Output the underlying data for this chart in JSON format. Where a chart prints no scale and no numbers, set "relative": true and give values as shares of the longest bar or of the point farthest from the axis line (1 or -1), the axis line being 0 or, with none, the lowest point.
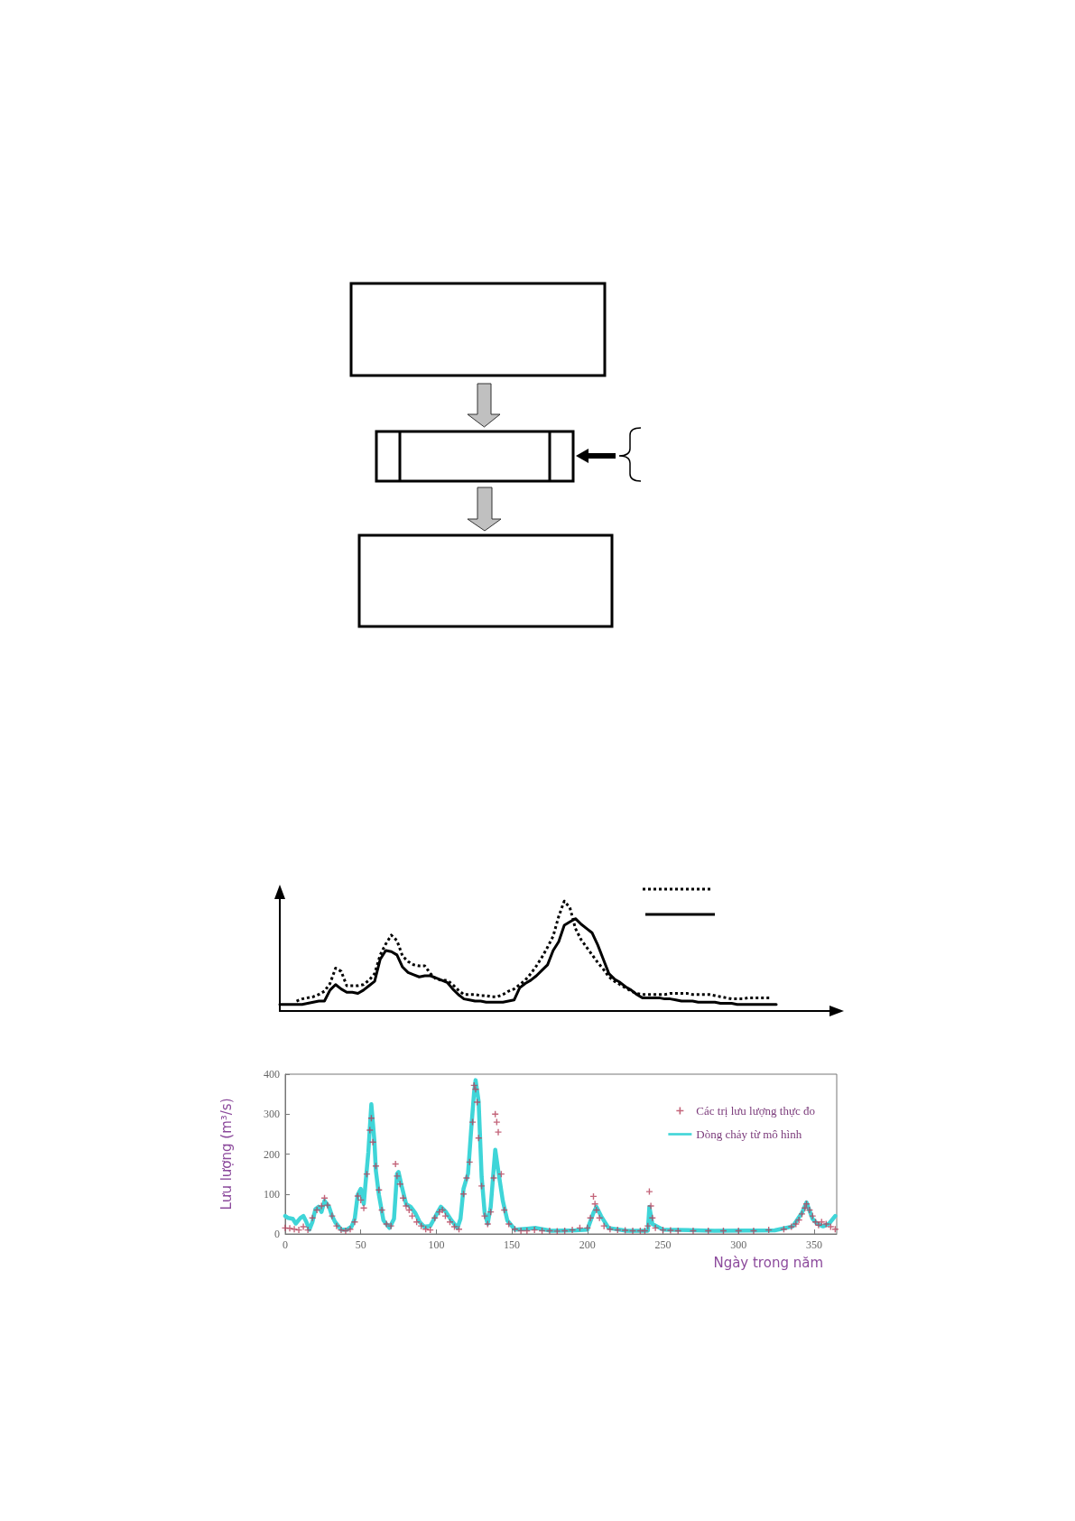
{
  "chart_data": [
    {
      "type": "line",
      "relative": true,
      "categories": [
        null,
        null,
        null,
        null,
        null,
        null,
        null,
        null,
        null,
        null,
        null,
        null,
        null,
        null,
        null,
        null,
        null,
        null,
        null,
        null,
        null,
        null,
        null,
        null,
        null,
        null,
        null,
        null,
        null,
        null,
        null,
        null,
        null,
        null,
        null,
        null,
        null,
        null,
        null,
        null,
        null,
        null,
        null,
        null,
        null,
        null,
        null,
        null,
        null,
        null,
        null,
        null,
        null,
        null,
        null,
        null,
        null,
        null,
        null,
        null,
        null,
        null,
        null,
        null,
        null,
        null,
        null,
        null,
        null,
        null,
        null,
        null,
        null,
        null,
        null,
        null,
        null,
        null,
        null,
        null,
        null,
        null,
        null,
        null,
        null,
        null,
        null,
        null,
        null,
        null,
        null,
        null,
        null,
        null,
        null,
        null,
        null,
        null,
        null,
        null,
        null
      ],
      "series": [
        {
          "color": "#000000",
          "line_style": "dotted",
          "values": [
            null,
            null,
            null,
            0.09,
            0.11,
            0.12,
            0.13,
            0.15,
            0.18,
            0.25,
            0.39,
            0.36,
            0.23,
            0.23,
            0.23,
            0.24,
            0.28,
            0.34,
            0.51,
            0.61,
            0.69,
            0.64,
            0.5,
            0.45,
            0.42,
            0.41,
            0.41,
            0.34,
            0.29,
            0.28,
            0.28,
            0.24,
            0.19,
            0.15,
            0.15,
            0.15,
            0.14,
            0.14,
            0.13,
            0.13,
            0.15,
            0.18,
            0.2,
            0.24,
            0.28,
            0.34,
            0.41,
            0.49,
            0.58,
            0.68,
            0.86,
            1,
            0.94,
            0.75,
            0.65,
            0.58,
            0.51,
            0.44,
            0.38,
            0.31,
            0.27,
            0.24,
            0.21,
            0.18,
            0.16,
            0.15,
            0.15,
            0.15,
            0.15,
            0.15,
            0.16,
            0.16,
            0.16,
            0.16,
            0.15,
            0.15,
            0.15,
            0.15,
            0.14,
            0.13,
            0.12,
            0.11,
            0.11,
            0.11,
            0.12,
            0.12,
            0.12,
            0.12,
            0.12,
            null,
            null,
            null,
            null,
            null,
            null,
            null,
            null,
            null,
            null,
            null,
            null
          ]
        },
        {
          "color": "#000000",
          "line_style": "solid",
          "values": [
            0.06,
            0.06,
            0.06,
            0.06,
            0.06,
            0.07,
            0.08,
            0.09,
            0.09,
            0.19,
            0.24,
            0.2,
            0.17,
            0.17,
            0.16,
            0.19,
            0.23,
            0.27,
            0.47,
            0.55,
            0.54,
            0.51,
            0.4,
            0.35,
            0.33,
            0.31,
            0.32,
            0.32,
            0.3,
            0.28,
            0.26,
            0.2,
            0.15,
            0.11,
            0.1,
            0.09,
            0.09,
            0.08,
            0.08,
            0.08,
            0.08,
            0.09,
            0.1,
            0.21,
            0.25,
            0.28,
            0.32,
            0.37,
            0.42,
            0.55,
            0.63,
            0.78,
            0.81,
            0.84,
            0.79,
            0.75,
            0.71,
            0.6,
            0.47,
            0.34,
            0.29,
            0.26,
            0.22,
            0.19,
            0.15,
            0.12,
            0.12,
            0.12,
            0.12,
            0.11,
            0.11,
            0.1,
            0.09,
            0.09,
            0.09,
            0.08,
            0.08,
            0.08,
            0.08,
            0.07,
            0.07,
            0.07,
            0.06,
            0.06,
            0.06,
            0.06,
            0.06,
            0.06,
            0.06,
            0.06,
            null,
            null,
            null,
            null,
            null,
            null,
            null,
            null,
            null,
            null,
            null
          ]
        }
      ]
    },
    {
      "type": "line",
      "xlabel": "Ngày trong năm",
      "ylabel": "Lưu lượng (m³/s)",
      "legend": "top right",
      "xlim": [
        0,
        365
      ],
      "xticks": [
        0,
        50,
        100,
        150,
        200,
        250,
        300,
        350
      ],
      "ylim": [
        0,
        400
      ],
      "yticks": [
        0,
        100,
        200,
        300,
        400
      ],
      "series": [
        {
          "name": "Các trị lưu lượng thực đo",
          "type": "scatter",
          "marker": "cross",
          "color": "#b5405a",
          "x": [
            0,
            3,
            6,
            9,
            12,
            15,
            18,
            21,
            24,
            26,
            28,
            31,
            34,
            37,
            40,
            43,
            46,
            48,
            50,
            52,
            54,
            56,
            57,
            58,
            60,
            62,
            64,
            67,
            70,
            73,
            74,
            76,
            78,
            80,
            82,
            84,
            87,
            90,
            93,
            96,
            99,
            102,
            104,
            106,
            109,
            112,
            115,
            118,
            120,
            122,
            124,
            125,
            126,
            127,
            128,
            130,
            132,
            134,
            136,
            138,
            139,
            140,
            141,
            143,
            145,
            148,
            152,
            156,
            160,
            165,
            170,
            175,
            180,
            185,
            190,
            195,
            200,
            202,
            204,
            205,
            206,
            208,
            211,
            215,
            220,
            225,
            230,
            235,
            238,
            240,
            241,
            242,
            243,
            245,
            250,
            255,
            260,
            270,
            280,
            290,
            300,
            310,
            320,
            330,
            335,
            338,
            340,
            342,
            344,
            345,
            347,
            349,
            351,
            353,
            355,
            358,
            361,
            364
          ],
          "values": [
            15,
            14,
            12,
            10,
            18,
            10,
            40,
            60,
            70,
            90,
            72,
            45,
            20,
            10,
            8,
            12,
            30,
            95,
            85,
            65,
            150,
            260,
            290,
            230,
            170,
            110,
            60,
            25,
            20,
            175,
            145,
            125,
            90,
            70,
            60,
            45,
            30,
            20,
            12,
            10,
            40,
            55,
            60,
            45,
            30,
            18,
            12,
            100,
            140,
            180,
            280,
            372,
            362,
            330,
            240,
            120,
            45,
            25,
            55,
            140,
            300,
            280,
            255,
            150,
            60,
            25,
            12,
            8,
            8,
            10,
            8,
            8,
            7,
            8,
            10,
            15,
            15,
            40,
            94,
            75,
            60,
            40,
            20,
            12,
            10,
            9,
            8,
            8,
            8,
            20,
            106,
            70,
            40,
            15,
            10,
            9,
            8,
            8,
            8,
            8,
            8,
            8,
            10,
            12,
            18,
            25,
            35,
            50,
            65,
            75,
            60,
            45,
            30,
            22,
            30,
            25,
            18,
            12
          ]
        },
        {
          "name": "Dòng chảy từ mô hình",
          "type": "line",
          "color": "#3fd5d8",
          "x": [
            0,
            2,
            5,
            7,
            10,
            12,
            14,
            16,
            18,
            20,
            22,
            24,
            26,
            29,
            31,
            33,
            37,
            41,
            44,
            46,
            48,
            50,
            52,
            53,
            55,
            57,
            59,
            60,
            62,
            65,
            69,
            72,
            74,
            75,
            77,
            80,
            83,
            86,
            89,
            92,
            96,
            98,
            101,
            103,
            106,
            110,
            114,
            116,
            118,
            121,
            123,
            125,
            126,
            128,
            130,
            132,
            134,
            136,
            139,
            141,
            144,
            147,
            152,
            160,
            166,
            176,
            192,
            200,
            204,
            206,
            209,
            214,
            226,
            240,
            241,
            243,
            250,
            284,
            324,
            336,
            342,
            345,
            349,
            352,
            356,
            360,
            364
          ],
          "values": [
            45,
            40,
            38,
            26,
            40,
            45,
            30,
            11,
            30,
            62,
            68,
            55,
            83,
            68,
            45,
            30,
            11,
            11,
            19,
            38,
            98,
            113,
            75,
            120,
            204,
            325,
            234,
            158,
            98,
            34,
            15,
            38,
            151,
            155,
            121,
            75,
            68,
            53,
            30,
            18,
            20,
            34,
            55,
            68,
            57,
            34,
            15,
            38,
            113,
            151,
            257,
            355,
            385,
            332,
            143,
            53,
            26,
            68,
            211,
            158,
            83,
            34,
            11,
            13,
            15,
            8,
            9,
            11,
            53,
            68,
            45,
            15,
            8,
            8,
            68,
            25,
            11,
            8,
            9,
            19,
            53,
            79,
            38,
            26,
            19,
            26,
            45
          ]
        }
      ]
    }
  ]
}
